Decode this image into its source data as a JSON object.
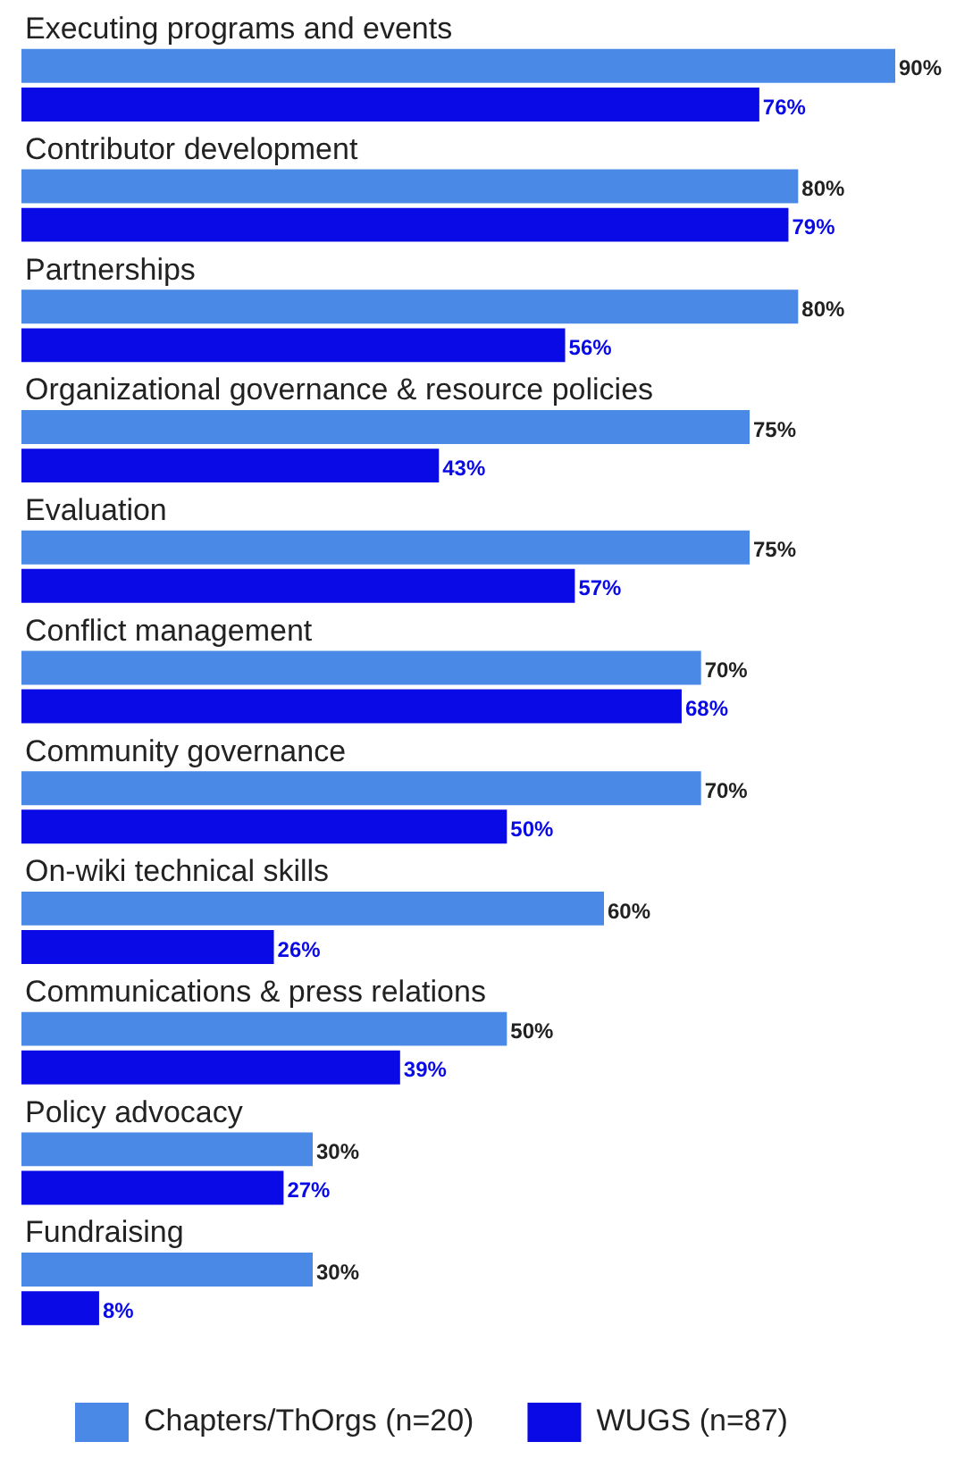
{
  "chart_data": {
    "type": "bar",
    "orientation": "horizontal",
    "categories": [
      "Executing programs and events",
      "Contributor development",
      "Partnerships",
      "Organizational governance & resource policies",
      "Evaluation",
      "Conflict management",
      "Community governance",
      "On-wiki technical skills",
      "Communications & press relations",
      "Policy advocacy",
      "Fundraising"
    ],
    "series": [
      {
        "name": "Chapters/ThOrgs (n=20)",
        "color": "#4a8ae6",
        "values": [
          90,
          80,
          80,
          75,
          75,
          70,
          70,
          60,
          50,
          30,
          30
        ],
        "value_labels": [
          "90%",
          "80%",
          "80%",
          "75%",
          "75%",
          "70%",
          "70%",
          "60%",
          "50%",
          "30%",
          "30%"
        ]
      },
      {
        "name": "WUGS (n=87)",
        "color": "#0a0ae6",
        "values": [
          76,
          79,
          56,
          43,
          57,
          68,
          50,
          26,
          39,
          27,
          8
        ],
        "value_labels": [
          "76%",
          "79%",
          "56%",
          "43%",
          "57%",
          "68%",
          "50%",
          "26%",
          "39%",
          "27%",
          "8%"
        ]
      }
    ],
    "legend": "bottom"
  }
}
